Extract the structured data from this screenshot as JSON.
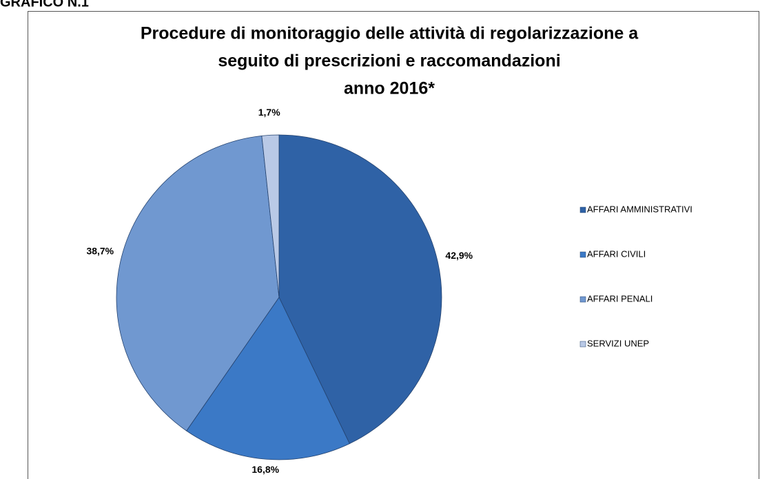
{
  "header": "GRAFICO N.1",
  "chart_data": {
    "type": "pie",
    "title": [
      "Procedure di monitoraggio delle attività di regolarizzazione a",
      "seguito di prescrizioni e raccomandazioni",
      "anno 2016*"
    ],
    "categories": [
      "AFFARI AMMINISTRATIVI",
      "AFFARI CIVILI",
      "AFFARI PENALI",
      "SERVIZI UNEP"
    ],
    "values": [
      42.9,
      16.8,
      38.7,
      1.7
    ],
    "value_labels": [
      "42,9%",
      "16,8%",
      "38,7%",
      "1,7%"
    ],
    "colors": [
      "#2f62a6",
      "#3b79c6",
      "#7098d0",
      "#b9c9e6"
    ],
    "legend": "right"
  }
}
